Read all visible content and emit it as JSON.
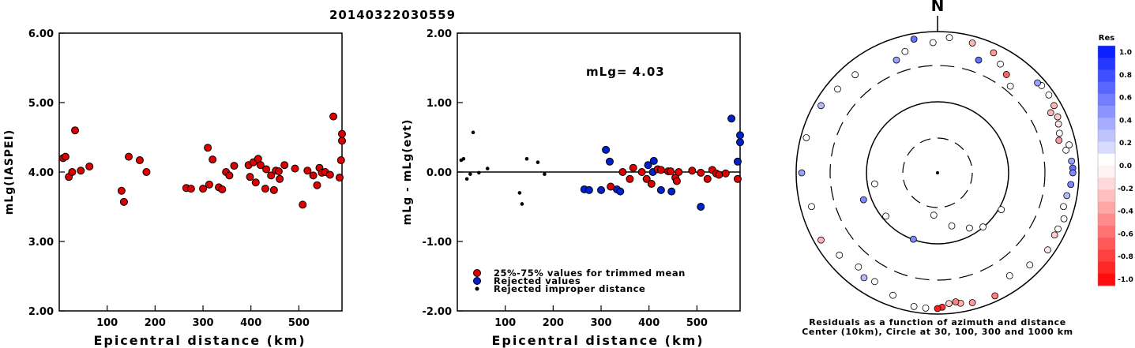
{
  "figure": {
    "title": "20140322030559",
    "annotation": "mLg= 4.03",
    "north_label": "N",
    "polar_caption_1": "Residuals as a function of azimuth and distance",
    "polar_caption_2": "Center (10km), Circle at 30, 100, 300 and 1000 km",
    "colorbar_title": "Res",
    "colorbar_ticks": [
      "1.0",
      "0.8",
      "0.6",
      "0.4",
      "0.2",
      "0.0",
      "-0.2",
      "-0.4",
      "-0.6",
      "-0.8",
      "-1.0"
    ],
    "colors": {
      "accepted": "#dd0000",
      "rejected": "#0022cc",
      "improper": "#000000"
    }
  },
  "chart_data": [
    {
      "type": "scatter",
      "xlabel": "Epicentral distance (km)",
      "ylabel": "mLg(IASPEI)",
      "xlim": [
        0,
        590
      ],
      "ylim": [
        2.0,
        6.0
      ],
      "xticks": [
        100,
        200,
        300,
        400,
        500
      ],
      "yticks": [
        "2.00",
        "3.00",
        "4.00",
        "5.00",
        "6.00"
      ],
      "x": [
        8,
        13,
        20,
        27,
        33,
        45,
        63,
        130,
        135,
        145,
        168,
        182,
        265,
        275,
        300,
        310,
        313,
        320,
        333,
        340,
        348,
        355,
        365,
        395,
        398,
        405,
        410,
        415,
        420,
        430,
        432,
        442,
        448,
        452,
        458,
        460,
        470,
        492,
        508,
        518,
        530,
        538,
        543,
        548,
        555,
        565,
        572,
        585,
        588,
        590,
        592
      ],
      "y": [
        4.2,
        4.22,
        3.93,
        4.0,
        4.6,
        4.02,
        4.08,
        3.73,
        3.57,
        4.22,
        4.17,
        4.0,
        3.77,
        3.76,
        3.76,
        4.35,
        3.82,
        4.18,
        3.78,
        3.75,
        4.0,
        3.95,
        4.09,
        4.1,
        3.93,
        4.14,
        3.85,
        4.19,
        4.1,
        3.76,
        4.04,
        3.95,
        3.74,
        4.02,
        4.01,
        3.9,
        4.1,
        4.05,
        3.53,
        4.02,
        3.95,
        3.81,
        4.06,
        3.99,
        4.0,
        3.96,
        4.8,
        3.92,
        4.17,
        4.45,
        4.55
      ]
    },
    {
      "type": "scatter",
      "xlabel": "Epicentral distance (km)",
      "ylabel": "mLg - mLg(evt)",
      "xlim": [
        0,
        590
      ],
      "ylim": [
        -2.0,
        2.0
      ],
      "xticks": [
        100,
        200,
        300,
        400,
        500
      ],
      "yticks": [
        "-2.00",
        "-1.00",
        "0.00",
        "1.00",
        "2.00"
      ],
      "reference_line": 0,
      "series": [
        {
          "name": "25%-75% values for trimmed mean",
          "x": [
            320,
            345,
            360,
            367,
            385,
            395,
            405,
            418,
            425,
            440,
            445,
            455,
            458,
            462,
            490,
            508,
            522,
            532,
            540,
            546,
            560,
            585
          ],
          "y": [
            -0.21,
            0.0,
            -0.1,
            0.06,
            0.0,
            -0.1,
            -0.17,
            0.04,
            0.03,
            0.01,
            0.01,
            -0.08,
            -0.13,
            0.0,
            0.02,
            -0.01,
            -0.1,
            0.03,
            -0.02,
            -0.04,
            -0.02,
            -0.1
          ]
        },
        {
          "name": "Rejected values",
          "x": [
            265,
            275,
            300,
            310,
            318,
            333,
            340,
            398,
            408,
            410,
            425,
            447,
            508,
            572,
            585,
            590,
            592
          ],
          "y": [
            -0.25,
            -0.26,
            -0.26,
            0.32,
            0.15,
            -0.25,
            -0.28,
            0.1,
            0.0,
            0.16,
            -0.26,
            -0.28,
            -0.5,
            0.77,
            0.15,
            0.43,
            0.53
          ]
        },
        {
          "name": "Rejected improper distance",
          "x": [
            8,
            13,
            20,
            27,
            33,
            45,
            63,
            130,
            135,
            145,
            168,
            182
          ],
          "y": [
            0.17,
            0.19,
            -0.1,
            -0.03,
            0.57,
            -0.01,
            0.05,
            -0.3,
            -0.46,
            0.19,
            0.14,
            -0.03
          ]
        }
      ]
    },
    {
      "type": "polar_scatter",
      "title": "Residuals as a function of azimuth and distance",
      "rings_km": [
        30,
        100,
        300,
        1000
      ],
      "center_km": 10,
      "colorbar_range": [
        -1.0,
        1.0
      ],
      "azimuth_deg": [
        350,
        5,
        358,
        345,
        340,
        20,
        15,
        25,
        30,
        35,
        40,
        60,
        55,
        50,
        48,
        65,
        68,
        62,
        72,
        75,
        80,
        78,
        85,
        88,
        90,
        95,
        100,
        105,
        110,
        115,
        118,
        125,
        135,
        145,
        155,
        165,
        170,
        172,
        175,
        178,
        180,
        185,
        190,
        200,
        210,
        215,
        220,
        230,
        240,
        255,
        270,
        285,
        300,
        310,
        320,
        200,
        185,
        165,
        150,
        140,
        120,
        250,
        260,
        230
      ],
      "distance_km": [
        900,
        900,
        700,
        600,
        500,
        500,
        800,
        750,
        600,
        500,
        400,
        800,
        850,
        900,
        800,
        750,
        700,
        650,
        650,
        600,
        700,
        800,
        800,
        820,
        820,
        780,
        720,
        700,
        800,
        760,
        750,
        800,
        700,
        600,
        850,
        800,
        750,
        700,
        720,
        800,
        900,
        850,
        900,
        700,
        600,
        650,
        550,
        650,
        800,
        700,
        900,
        850,
        800,
        700,
        650,
        100,
        40,
        60,
        80,
        100,
        110,
        130,
        80,
        90
      ],
      "residual": [
        0.6,
        0.0,
        0.0,
        0.0,
        0.4,
        0.6,
        -0.3,
        -0.4,
        0.0,
        -0.6,
        0.0,
        -0.3,
        0.0,
        0.0,
        0.4,
        -0.2,
        -0.1,
        -0.3,
        0.0,
        -0.4,
        0.0,
        0.0,
        0.4,
        0.6,
        0.5,
        0.5,
        0.3,
        0.0,
        0.0,
        0.0,
        -0.2,
        -0.1,
        0.0,
        0.0,
        -0.5,
        -0.4,
        -0.3,
        -0.5,
        -0.2,
        -0.8,
        -0.9,
        0.0,
        0.0,
        0.0,
        0.0,
        0.3,
        0.0,
        0.0,
        -0.3,
        0.0,
        0.4,
        0.0,
        0.3,
        0.0,
        0.0,
        0.5,
        0.0,
        0.0,
        0.0,
        0.0,
        0.0,
        0.5,
        0.0,
        0.0
      ]
    }
  ]
}
